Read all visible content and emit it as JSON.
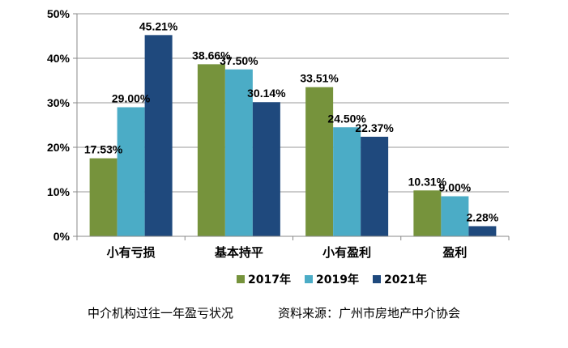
{
  "chart_data": {
    "type": "bar",
    "categories": [
      "小有亏损",
      "基本持平",
      "小有盈利",
      "盈利"
    ],
    "series": [
      {
        "name": "2017年",
        "color": "#76933c",
        "values": [
          17.53,
          38.66,
          33.51,
          10.31
        ],
        "labels": [
          "17.53%",
          "38.66%",
          "33.51%",
          "10.31%"
        ]
      },
      {
        "name": "2019年",
        "color": "#4bacc6",
        "values": [
          29.0,
          37.5,
          24.5,
          9.0
        ],
        "labels": [
          "29.00%",
          "37.50%",
          "24.50%",
          "9.00%"
        ]
      },
      {
        "name": "2021年",
        "color": "#1f497d",
        "values": [
          45.21,
          30.14,
          22.37,
          2.28
        ],
        "labels": [
          "45.21%",
          "30.14%",
          "22.37%",
          "2.28%"
        ]
      }
    ],
    "ylim": [
      0,
      50
    ],
    "yticks": [
      0,
      10,
      20,
      30,
      40,
      50
    ],
    "ytick_labels": [
      "0%",
      "10%",
      "20%",
      "30%",
      "40%",
      "50%"
    ],
    "grid": true,
    "legend": "bottom"
  },
  "caption": {
    "title": "中介机构过往一年盈亏状况",
    "source": "资料来源：广州市房地产中介协会"
  }
}
